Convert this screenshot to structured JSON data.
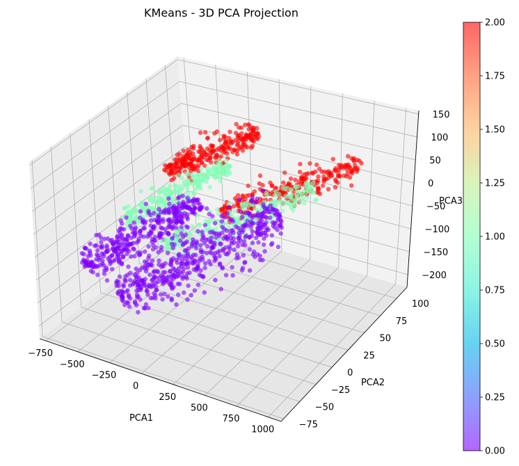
{
  "chart_data": {
    "type": "scatter",
    "projection": "3d",
    "title": "KMeans - 3D PCA Projection",
    "xlabel": "PCA1",
    "ylabel": "PCA2",
    "zlabel": "PCA3",
    "xticks": [
      "−750",
      "−500",
      "−250",
      "0",
      "250",
      "500",
      "750",
      "1000"
    ],
    "yticks": [
      "−75",
      "−50",
      "−25",
      "0",
      "25",
      "50",
      "75",
      "100"
    ],
    "zticks": [
      "150",
      "100",
      "50",
      "0",
      "−50",
      "−100",
      "−150",
      "−200"
    ],
    "xlim": [
      -800,
      1050
    ],
    "ylim": [
      -90,
      110
    ],
    "zlim": [
      -220,
      170
    ],
    "grid": true,
    "colorbar": {
      "colormap": "rainbow",
      "alpha": 0.6,
      "range": [
        0.0,
        2.0
      ],
      "ticks": [
        "0.00",
        "0.25",
        "0.50",
        "0.75",
        "1.00",
        "1.25",
        "1.50",
        "1.75",
        "2.00"
      ],
      "placement": "right"
    },
    "clusters": [
      {
        "label": 0,
        "color": "#8000ff"
      },
      {
        "label": 1,
        "color": "#80ffb4"
      },
      {
        "label": 2,
        "color": "#ff0000"
      }
    ]
  }
}
